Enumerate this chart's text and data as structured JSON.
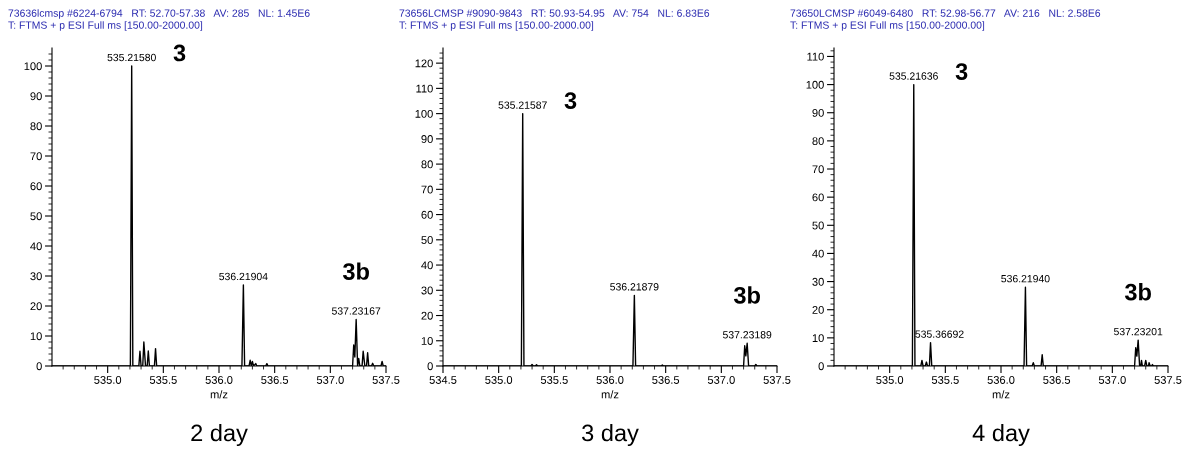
{
  "chart_data": [
    {
      "type": "line",
      "title": "73636lcmsp #6224-6794   RT: 52.70-57.38   AV: 285   NL: 1.45E6",
      "subtitle": "T: FTMS + p ESI Full ms [150.00-2000.00]",
      "xlabel": "m/z",
      "series": [
        {
          "color": "#000000",
          "x": [
            534.5,
            535.204,
            535.2158,
            535.226,
            535.28,
            535.29,
            535.3,
            535.315,
            535.325,
            535.34,
            535.355,
            535.365,
            535.375,
            535.42,
            535.43,
            535.44,
            536.206,
            536.219,
            536.23,
            536.27,
            536.28,
            536.29,
            536.3,
            536.31,
            536.33,
            536.34,
            536.42,
            536.43,
            536.44,
            537.2,
            537.21,
            537.22,
            537.232,
            537.245,
            537.255,
            537.265,
            537.285,
            537.295,
            537.31,
            537.325,
            537.335,
            537.345,
            537.37,
            537.38,
            537.39,
            537.455,
            537.465,
            537.475,
            537.5
          ],
          "values": [
            0,
            0,
            100,
            0,
            0,
            4.9,
            0,
            0,
            8,
            0,
            0,
            5,
            0,
            0,
            5.8,
            0,
            0,
            27,
            0,
            0,
            1.9,
            0,
            1.5,
            0,
            0.8,
            0,
            0,
            0.8,
            0,
            0,
            7,
            3,
            15.5,
            0,
            2.5,
            0,
            0,
            4.9,
            0,
            0,
            4.4,
            0,
            0,
            0.9,
            0,
            0,
            1.5,
            0,
            0
          ]
        }
      ],
      "xlim": [
        534.5,
        537.5
      ],
      "ylim": [
        0,
        106
      ],
      "xticks": [
        {
          "value": 534.6,
          "label": null
        },
        {
          "value": 534.7,
          "label": null
        },
        {
          "value": 534.8,
          "label": null
        },
        {
          "value": 534.9,
          "label": null
        },
        {
          "value": 535,
          "label": "535.0"
        },
        {
          "value": 535.1,
          "label": null
        },
        {
          "value": 535.2,
          "label": null
        },
        {
          "value": 535.3,
          "label": null
        },
        {
          "value": 535.4,
          "label": null
        },
        535.5,
        {
          "value": 535.6,
          "label": null
        },
        {
          "value": 535.7,
          "label": null
        },
        {
          "value": 535.8,
          "label": null
        },
        {
          "value": 535.9,
          "label": null
        },
        {
          "value": 536,
          "label": "536.0"
        },
        {
          "value": 536.1,
          "label": null
        },
        {
          "value": 536.2,
          "label": null
        },
        {
          "value": 536.3,
          "label": null
        },
        {
          "value": 536.4,
          "label": null
        },
        536.5,
        {
          "value": 536.6,
          "label": null
        },
        {
          "value": 536.7,
          "label": null
        },
        {
          "value": 536.8,
          "label": null
        },
        {
          "value": 536.9,
          "label": null
        },
        {
          "value": 537,
          "label": "537.0"
        },
        {
          "value": 537.1,
          "label": null
        },
        {
          "value": 537.2,
          "label": null
        },
        {
          "value": 537.3,
          "label": null
        },
        {
          "value": 537.4,
          "label": null
        },
        537.5
      ],
      "yticks": [
        0,
        {
          "value": 2,
          "label": null
        },
        {
          "value": 4,
          "label": null
        },
        {
          "value": 6,
          "label": null
        },
        {
          "value": 8,
          "label": null
        },
        10,
        {
          "value": 12,
          "label": null
        },
        {
          "value": 14,
          "label": null
        },
        {
          "value": 16,
          "label": null
        },
        {
          "value": 18,
          "label": null
        },
        20,
        {
          "value": 22,
          "label": null
        },
        {
          "value": 24,
          "label": null
        },
        {
          "value": 26,
          "label": null
        },
        {
          "value": 28,
          "label": null
        },
        30,
        {
          "value": 32,
          "label": null
        },
        {
          "value": 34,
          "label": null
        },
        {
          "value": 36,
          "label": null
        },
        {
          "value": 38,
          "label": null
        },
        40,
        {
          "value": 42,
          "label": null
        },
        {
          "value": 44,
          "label": null
        },
        {
          "value": 46,
          "label": null
        },
        {
          "value": 48,
          "label": null
        },
        50,
        {
          "value": 52,
          "label": null
        },
        {
          "value": 54,
          "label": null
        },
        {
          "value": 56,
          "label": null
        },
        {
          "value": 58,
          "label": null
        },
        60,
        {
          "value": 62,
          "label": null
        },
        {
          "value": 64,
          "label": null
        },
        {
          "value": 66,
          "label": null
        },
        {
          "value": 68,
          "label": null
        },
        70,
        {
          "value": 72,
          "label": null
        },
        {
          "value": 74,
          "label": null
        },
        {
          "value": 76,
          "label": null
        },
        {
          "value": 78,
          "label": null
        },
        80,
        {
          "value": 82,
          "label": null
        },
        {
          "value": 84,
          "label": null
        },
        {
          "value": 86,
          "label": null
        },
        {
          "value": 88,
          "label": null
        },
        90,
        {
          "value": 92,
          "label": null
        },
        {
          "value": 94,
          "label": null
        },
        {
          "value": 96,
          "label": null
        },
        {
          "value": 98,
          "label": null
        },
        100,
        {
          "value": 102,
          "label": null
        },
        {
          "value": 104,
          "label": null
        }
      ],
      "annotations": [
        "2 day",
        "3",
        "3b",
        {
          "text": "535.21580",
          "x": 535.2158,
          "y": 100
        },
        {
          "text": "536.21904",
          "x": 536.219,
          "y": 27
        },
        {
          "text": "537.23167",
          "x": 537.232,
          "y": 15.5
        }
      ]
    },
    {
      "type": "line",
      "title": "73656LCMSP #9090-9843   RT: 50.93-54.95   AV: 754   NL: 6.83E6",
      "subtitle": "T: FTMS + p ESI Full ms [150.00-2000.00]",
      "xlabel": "m/z",
      "series": [
        {
          "color": "#000000",
          "x": [
            534.5,
            535.204,
            535.2159,
            535.227,
            535.29,
            535.3,
            535.31,
            535.33,
            535.34,
            535.35,
            536.206,
            536.2188,
            536.23,
            536.46,
            536.47,
            536.48,
            537.2,
            537.21,
            537.22,
            537.232,
            537.245,
            537.3,
            537.31,
            537.32,
            537.5
          ],
          "values": [
            0,
            0,
            100,
            0,
            0,
            0.6,
            0,
            0,
            0.5,
            0,
            0,
            28,
            0,
            0,
            0.4,
            0,
            0,
            8,
            4,
            9,
            0,
            0,
            0.6,
            0,
            0
          ]
        }
      ],
      "xlim": [
        534.5,
        537.5
      ],
      "ylim": [
        0,
        126
      ],
      "xticks": [
        534.5,
        {
          "value": 534.6,
          "label": null
        },
        {
          "value": 534.7,
          "label": null
        },
        {
          "value": 534.8,
          "label": null
        },
        {
          "value": 534.9,
          "label": null
        },
        {
          "value": 535,
          "label": "535.0"
        },
        {
          "value": 535.1,
          "label": null
        },
        {
          "value": 535.2,
          "label": null
        },
        {
          "value": 535.3,
          "label": null
        },
        {
          "value": 535.4,
          "label": null
        },
        535.5,
        {
          "value": 535.6,
          "label": null
        },
        {
          "value": 535.7,
          "label": null
        },
        {
          "value": 535.8,
          "label": null
        },
        {
          "value": 535.9,
          "label": null
        },
        {
          "value": 536,
          "label": "536.0"
        },
        {
          "value": 536.1,
          "label": null
        },
        {
          "value": 536.2,
          "label": null
        },
        {
          "value": 536.3,
          "label": null
        },
        {
          "value": 536.4,
          "label": null
        },
        536.5,
        {
          "value": 536.6,
          "label": null
        },
        {
          "value": 536.7,
          "label": null
        },
        {
          "value": 536.8,
          "label": null
        },
        {
          "value": 536.9,
          "label": null
        },
        {
          "value": 537,
          "label": "537.0"
        },
        {
          "value": 537.1,
          "label": null
        },
        {
          "value": 537.2,
          "label": null
        },
        {
          "value": 537.3,
          "label": null
        },
        {
          "value": 537.4,
          "label": null
        },
        537.5
      ],
      "yticks": [
        0,
        {
          "value": 2,
          "label": null
        },
        {
          "value": 4,
          "label": null
        },
        {
          "value": 6,
          "label": null
        },
        {
          "value": 8,
          "label": null
        },
        10,
        {
          "value": 12,
          "label": null
        },
        {
          "value": 14,
          "label": null
        },
        {
          "value": 16,
          "label": null
        },
        {
          "value": 18,
          "label": null
        },
        20,
        {
          "value": 22,
          "label": null
        },
        {
          "value": 24,
          "label": null
        },
        {
          "value": 26,
          "label": null
        },
        {
          "value": 28,
          "label": null
        },
        30,
        {
          "value": 32,
          "label": null
        },
        {
          "value": 34,
          "label": null
        },
        {
          "value": 36,
          "label": null
        },
        {
          "value": 38,
          "label": null
        },
        40,
        {
          "value": 42,
          "label": null
        },
        {
          "value": 44,
          "label": null
        },
        {
          "value": 46,
          "label": null
        },
        {
          "value": 48,
          "label": null
        },
        50,
        {
          "value": 52,
          "label": null
        },
        {
          "value": 54,
          "label": null
        },
        {
          "value": 56,
          "label": null
        },
        {
          "value": 58,
          "label": null
        },
        60,
        {
          "value": 62,
          "label": null
        },
        {
          "value": 64,
          "label": null
        },
        {
          "value": 66,
          "label": null
        },
        {
          "value": 68,
          "label": null
        },
        70,
        {
          "value": 72,
          "label": null
        },
        {
          "value": 74,
          "label": null
        },
        {
          "value": 76,
          "label": null
        },
        {
          "value": 78,
          "label": null
        },
        80,
        {
          "value": 82,
          "label": null
        },
        {
          "value": 84,
          "label": null
        },
        {
          "value": 86,
          "label": null
        },
        {
          "value": 88,
          "label": null
        },
        90,
        {
          "value": 92,
          "label": null
        },
        {
          "value": 94,
          "label": null
        },
        {
          "value": 96,
          "label": null
        },
        {
          "value": 98,
          "label": null
        },
        100,
        {
          "value": 102,
          "label": null
        },
        {
          "value": 104,
          "label": null
        },
        {
          "value": 106,
          "label": null
        },
        {
          "value": 108,
          "label": null
        },
        110,
        {
          "value": 112,
          "label": null
        },
        {
          "value": 114,
          "label": null
        },
        {
          "value": 116,
          "label": null
        },
        {
          "value": 118,
          "label": null
        },
        120,
        {
          "value": 122,
          "label": null
        },
        {
          "value": 124,
          "label": null
        }
      ],
      "annotations": [
        "3 day",
        "3",
        "3b",
        {
          "text": "535.21587",
          "x": 535.2159,
          "y": 100
        },
        {
          "text": "536.21879",
          "x": 536.2188,
          "y": 28
        },
        {
          "text": "537.23189",
          "x": 537.232,
          "y": 9
        }
      ]
    },
    {
      "type": "line",
      "title": "73650LCMSP #6049-6480   RT: 52.98-56.77   AV: 216   NL: 2.58E6",
      "subtitle": "T: FTMS + p ESI Full ms [150.00-2000.00]",
      "xlabel": "m/z",
      "series": [
        {
          "color": "#000000",
          "x": [
            534.5,
            535.204,
            535.2164,
            535.227,
            535.28,
            535.29,
            535.3,
            535.32,
            535.33,
            535.34,
            535.357,
            535.367,
            535.378,
            536.207,
            536.2194,
            536.23,
            536.28,
            536.29,
            536.3,
            536.36,
            536.37,
            536.38,
            537.2,
            537.21,
            537.22,
            537.232,
            537.245,
            537.255,
            537.262,
            537.27,
            537.29,
            537.3,
            537.31,
            537.325,
            537.33,
            537.34,
            537.355,
            537.36,
            537.37,
            537.5
          ],
          "values": [
            0,
            0,
            100,
            0,
            0,
            2,
            0,
            0,
            1.4,
            0,
            0,
            8.3,
            0,
            0,
            28,
            0,
            0,
            1.2,
            0,
            0,
            4,
            0,
            0,
            6.5,
            3.5,
            9.2,
            0,
            0,
            2,
            0,
            0,
            2,
            0,
            0,
            1.2,
            0,
            0,
            0.5,
            0,
            0
          ]
        }
      ],
      "xlim": [
        534.5,
        537.5
      ],
      "ylim": [
        0,
        113
      ],
      "xticks": [
        {
          "value": 534.6,
          "label": null
        },
        {
          "value": 534.7,
          "label": null
        },
        {
          "value": 534.8,
          "label": null
        },
        {
          "value": 534.9,
          "label": null
        },
        {
          "value": 535,
          "label": "535.0"
        },
        {
          "value": 535.1,
          "label": null
        },
        {
          "value": 535.2,
          "label": null
        },
        {
          "value": 535.3,
          "label": null
        },
        {
          "value": 535.4,
          "label": null
        },
        535.5,
        {
          "value": 535.6,
          "label": null
        },
        {
          "value": 535.7,
          "label": null
        },
        {
          "value": 535.8,
          "label": null
        },
        {
          "value": 535.9,
          "label": null
        },
        {
          "value": 536,
          "label": "536.0"
        },
        {
          "value": 536.1,
          "label": null
        },
        {
          "value": 536.2,
          "label": null
        },
        {
          "value": 536.3,
          "label": null
        },
        {
          "value": 536.4,
          "label": null
        },
        536.5,
        {
          "value": 536.6,
          "label": null
        },
        {
          "value": 536.7,
          "label": null
        },
        {
          "value": 536.8,
          "label": null
        },
        {
          "value": 536.9,
          "label": null
        },
        {
          "value": 537,
          "label": "537.0"
        },
        {
          "value": 537.1,
          "label": null
        },
        {
          "value": 537.2,
          "label": null
        },
        {
          "value": 537.3,
          "label": null
        },
        {
          "value": 537.4,
          "label": null
        },
        537.5
      ],
      "yticks": [
        0,
        {
          "value": 2,
          "label": null
        },
        {
          "value": 4,
          "label": null
        },
        {
          "value": 6,
          "label": null
        },
        {
          "value": 8,
          "label": null
        },
        10,
        {
          "value": 12,
          "label": null
        },
        {
          "value": 14,
          "label": null
        },
        {
          "value": 16,
          "label": null
        },
        {
          "value": 18,
          "label": null
        },
        20,
        {
          "value": 22,
          "label": null
        },
        {
          "value": 24,
          "label": null
        },
        {
          "value": 26,
          "label": null
        },
        {
          "value": 28,
          "label": null
        },
        30,
        {
          "value": 32,
          "label": null
        },
        {
          "value": 34,
          "label": null
        },
        {
          "value": 36,
          "label": null
        },
        {
          "value": 38,
          "label": null
        },
        40,
        {
          "value": 42,
          "label": null
        },
        {
          "value": 44,
          "label": null
        },
        {
          "value": 46,
          "label": null
        },
        {
          "value": 48,
          "label": null
        },
        50,
        {
          "value": 52,
          "label": null
        },
        {
          "value": 54,
          "label": null
        },
        {
          "value": 56,
          "label": null
        },
        {
          "value": 58,
          "label": null
        },
        60,
        {
          "value": 62,
          "label": null
        },
        {
          "value": 64,
          "label": null
        },
        {
          "value": 66,
          "label": null
        },
        {
          "value": 68,
          "label": null
        },
        70,
        {
          "value": 72,
          "label": null
        },
        {
          "value": 74,
          "label": null
        },
        {
          "value": 76,
          "label": null
        },
        {
          "value": 78,
          "label": null
        },
        80,
        {
          "value": 82,
          "label": null
        },
        {
          "value": 84,
          "label": null
        },
        {
          "value": 86,
          "label": null
        },
        {
          "value": 88,
          "label": null
        },
        90,
        {
          "value": 92,
          "label": null
        },
        {
          "value": 94,
          "label": null
        },
        {
          "value": 96,
          "label": null
        },
        {
          "value": 98,
          "label": null
        },
        100,
        {
          "value": 102,
          "label": null
        },
        {
          "value": 104,
          "label": null
        },
        {
          "value": 106,
          "label": null
        },
        {
          "value": 108,
          "label": null
        },
        110,
        {
          "value": 112,
          "label": null
        }
      ],
      "annotations": [
        "4 day",
        "3",
        "3b",
        {
          "text": "535.21636",
          "x": 535.2164,
          "y": 100
        },
        {
          "text": "535.36692",
          "x": 535.367,
          "y": 8.3
        },
        {
          "text": "536.21940",
          "x": 536.2194,
          "y": 28
        },
        {
          "text": "537.23201",
          "x": 537.232,
          "y": 9.2
        }
      ]
    }
  ]
}
